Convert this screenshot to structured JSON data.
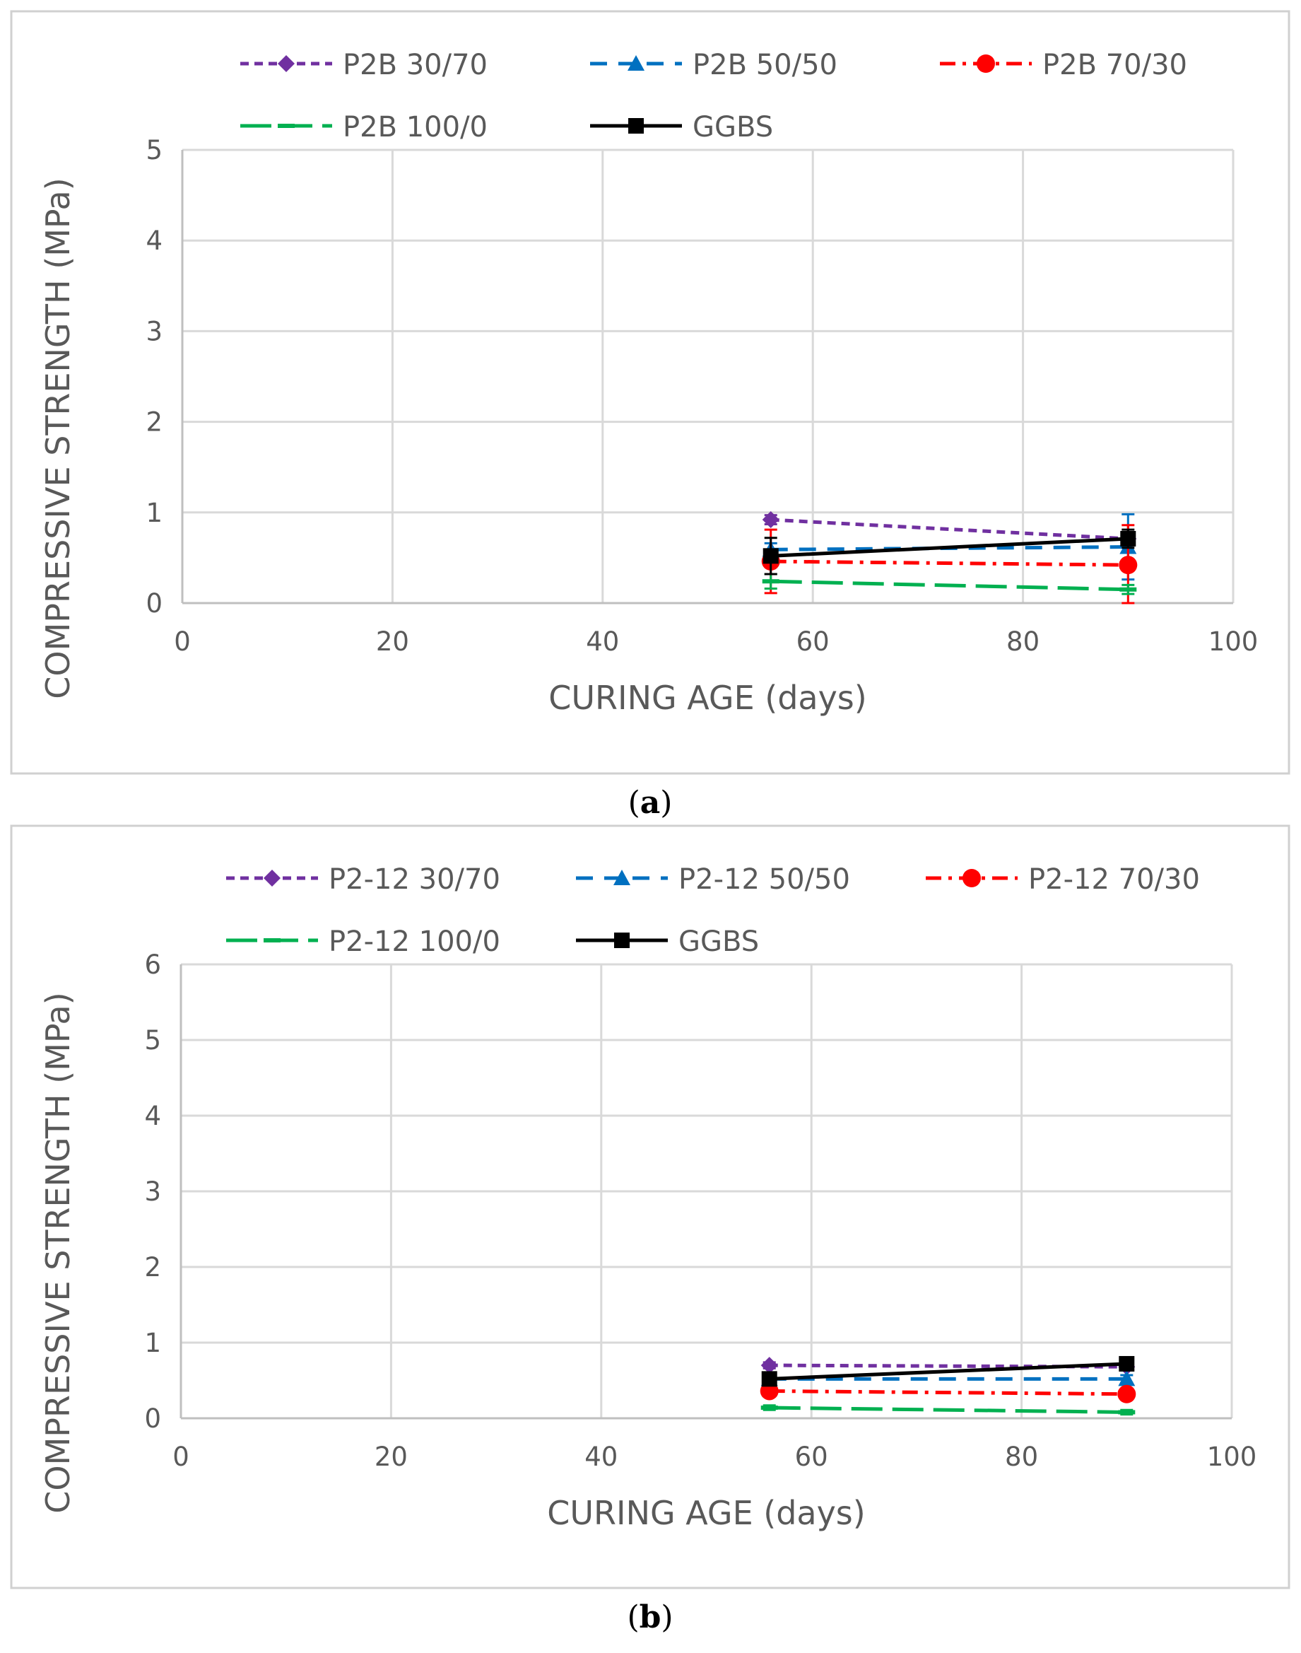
{
  "figure": {
    "captions": [
      {
        "open": "(",
        "letter": "a",
        "close": ")"
      },
      {
        "open": "(",
        "letter": "b",
        "close": ")"
      }
    ]
  },
  "chart_data": [
    {
      "type": "line",
      "xlabel": "CURING AGE (days)",
      "ylabel": "COMPRESSIVE STRENGTH (MPa)",
      "xlim": [
        0,
        100
      ],
      "ylim": [
        0,
        5
      ],
      "xticks": [
        0,
        20,
        40,
        60,
        80,
        100
      ],
      "yticks": [
        0,
        1,
        2,
        3,
        4,
        5
      ],
      "grid": true,
      "legend_position": "top",
      "series": [
        {
          "name": "P2B 30/70",
          "color": "#7030A0",
          "dash": "short-dash",
          "marker": "diamond",
          "x": [
            56,
            90
          ],
          "y": [
            0.92,
            0.71
          ],
          "err": [
            0.05,
            0.05
          ]
        },
        {
          "name": "P2B 50/50",
          "color": "#0070C0",
          "dash": "dash",
          "marker": "triangle",
          "x": [
            56,
            90
          ],
          "y": [
            0.59,
            0.62
          ],
          "err": [
            0.07,
            0.36
          ]
        },
        {
          "name": "P2B 70/30",
          "color": "#FF0000",
          "dash": "dash-dot",
          "marker": "circle",
          "x": [
            56,
            90
          ],
          "y": [
            0.46,
            0.42
          ],
          "err": [
            0.35,
            0.44
          ]
        },
        {
          "name": "P2B 100/0",
          "color": "#00B050",
          "dash": "long-dash",
          "marker": "dash",
          "x": [
            56,
            90
          ],
          "y": [
            0.24,
            0.15
          ],
          "err": [
            0.08,
            0.05
          ]
        },
        {
          "name": "GGBS",
          "color": "#000000",
          "dash": "solid",
          "marker": "square",
          "x": [
            56,
            90
          ],
          "y": [
            0.52,
            0.71
          ],
          "err": [
            0.2,
            0.1
          ]
        }
      ]
    },
    {
      "type": "line",
      "xlabel": "CURING AGE (days)",
      "ylabel": "COMPRESSIVE STRENGTH (MPa)",
      "xlim": [
        0,
        100
      ],
      "ylim": [
        0,
        6
      ],
      "xticks": [
        0,
        20,
        40,
        60,
        80,
        100
      ],
      "yticks": [
        0,
        1,
        2,
        3,
        4,
        5,
        6
      ],
      "grid": true,
      "legend_position": "top",
      "series": [
        {
          "name": "P2-12 30/70",
          "color": "#7030A0",
          "dash": "short-dash",
          "marker": "diamond",
          "x": [
            56,
            90
          ],
          "y": [
            0.7,
            0.68
          ],
          "err": [
            0.04,
            0.04
          ]
        },
        {
          "name": "P2-12 50/50",
          "color": "#0070C0",
          "dash": "dash",
          "marker": "triangle",
          "x": [
            56,
            90
          ],
          "y": [
            0.52,
            0.52
          ],
          "err": [
            0.04,
            0.05
          ]
        },
        {
          "name": "P2-12 70/30",
          "color": "#FF0000",
          "dash": "dash-dot",
          "marker": "circle",
          "x": [
            56,
            90
          ],
          "y": [
            0.36,
            0.32
          ],
          "err": [
            0.04,
            0.04
          ]
        },
        {
          "name": "P2-12 100/0",
          "color": "#00B050",
          "dash": "long-dash",
          "marker": "dash",
          "x": [
            56,
            90
          ],
          "y": [
            0.14,
            0.08
          ],
          "err": [
            0.03,
            0.03
          ]
        },
        {
          "name": "GGBS",
          "color": "#000000",
          "dash": "solid",
          "marker": "square",
          "x": [
            56,
            90
          ],
          "y": [
            0.52,
            0.72
          ],
          "err": [
            0.05,
            0.06
          ]
        }
      ]
    }
  ]
}
